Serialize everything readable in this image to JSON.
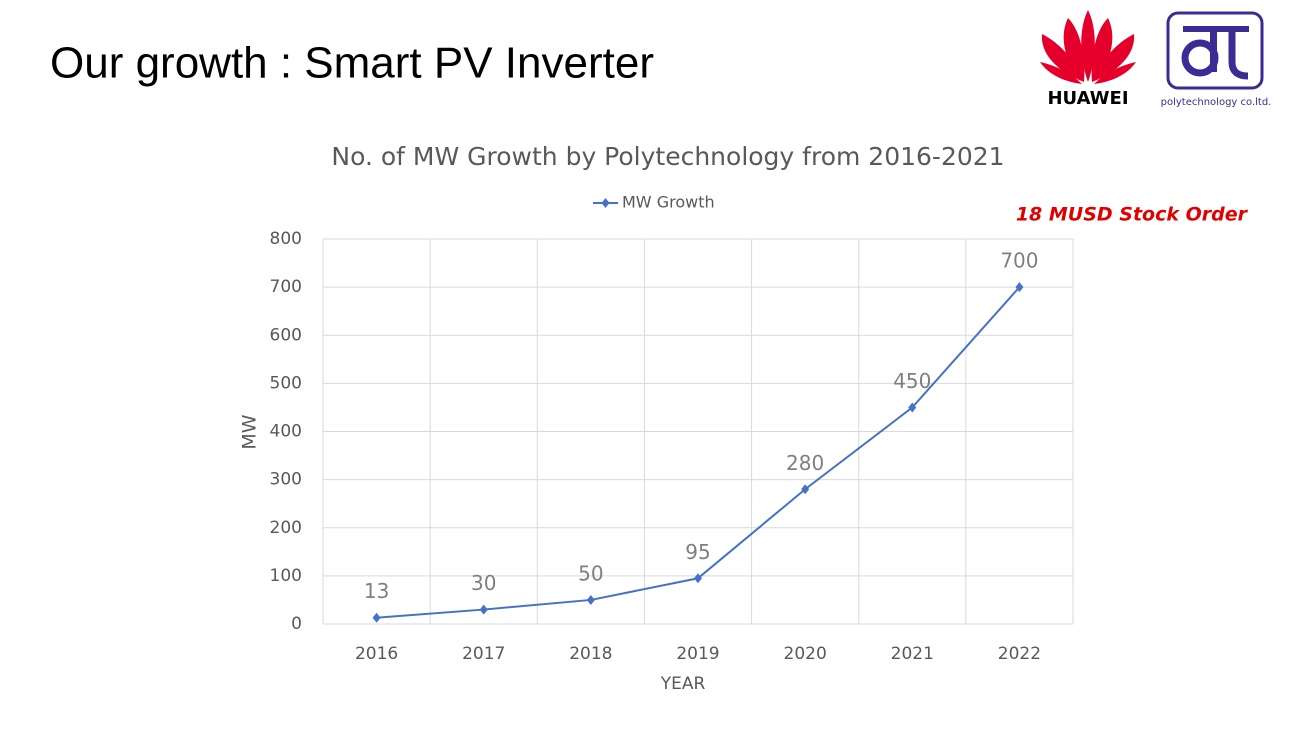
{
  "slide": {
    "title": "Our growth : Smart PV Inverter"
  },
  "logos": {
    "huawei": "HUAWEI",
    "polytechnology": "polytechnology co.ltd."
  },
  "chart_data": {
    "type": "line",
    "title": "No. of MW Growth  by Polytechnology from 2016-2021",
    "annotation": "18 MUSD Stock Order",
    "x_label": "YEAR",
    "y_label": "MW",
    "categories": [
      "2016",
      "2017",
      "2018",
      "2019",
      "2020",
      "2021",
      "2022"
    ],
    "series": [
      {
        "name": "MW Growth",
        "color": "#4472c4",
        "values": [
          13,
          30,
          50,
          95,
          280,
          450,
          700
        ]
      }
    ],
    "ylim": [
      0,
      800
    ],
    "yticks": [
      0,
      100,
      200,
      300,
      400,
      500,
      600,
      700,
      800
    ],
    "grid": true,
    "legend": "top",
    "data_labels": true
  }
}
